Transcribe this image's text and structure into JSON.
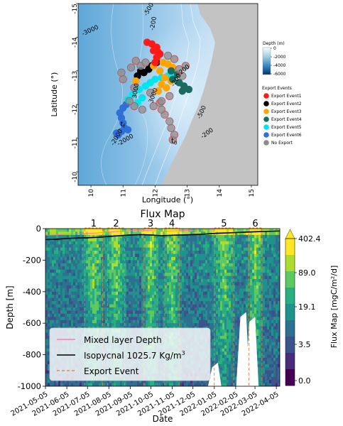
{
  "chart_data": [
    {
      "type": "scatter",
      "xlabel": "Longitude (°)",
      "ylabel": "Latitude (°)",
      "xlim": [
        9.6,
        15.2
      ],
      "ylim": [
        -15,
        -9.6
      ],
      "xticks": [
        "10",
        "11",
        "12",
        "13",
        "14",
        "15"
      ],
      "yticks": [
        "-10",
        "-11",
        "-12",
        "-13",
        "-14",
        "-15"
      ],
      "annotations": [
        "t0",
        "tf"
      ],
      "contour_labels": [
        "-2000",
        "-2000",
        "-200",
        "-500",
        "3000",
        "-3000",
        "3000",
        "-200",
        "200",
        "-200",
        "-500"
      ],
      "colorbar": {
        "title": "Depth (m)",
        "ticks": [
          "0",
          "-2000",
          "-4000",
          "-6000"
        ]
      },
      "legend": {
        "title": "Export Events",
        "position": "right",
        "entries": [
          {
            "name": "Export Event1",
            "color": "#ff1a1a"
          },
          {
            "name": "Export Event2",
            "color": "#000000"
          },
          {
            "name": "Export Event3",
            "color": "#ffa500"
          },
          {
            "name": "Export Event4",
            "color": "#1b6b63"
          },
          {
            "name": "Export Event5",
            "color": "#00e5ee"
          },
          {
            "name": "Export Event6",
            "color": "#2e6fd8"
          },
          {
            "name": "No Export",
            "color": "#8c8c8c"
          }
        ]
      },
      "series": [
        {
          "name": "Export Event6",
          "color": "#2e6fd8",
          "points": [
            [
              10.8,
              -11.15
            ],
            [
              10.95,
              -11.2
            ],
            [
              11.05,
              -11.3
            ],
            [
              11.0,
              -11.45
            ],
            [
              10.95,
              -11.6
            ],
            [
              10.9,
              -11.75
            ],
            [
              11.0,
              -11.9
            ],
            [
              11.1,
              -12.0
            ],
            [
              10.85,
              -11.1
            ],
            [
              11.15,
              -11.25
            ]
          ]
        },
        {
          "name": "Export Event5",
          "color": "#00e5ee",
          "points": [
            [
              11.15,
              -12.15
            ],
            [
              11.3,
              -12.3
            ],
            [
              11.5,
              -12.45
            ],
            [
              11.7,
              -12.55
            ],
            [
              11.85,
              -12.65
            ],
            [
              12.0,
              -12.75
            ],
            [
              12.2,
              -12.8
            ],
            [
              12.4,
              -12.85
            ],
            [
              12.6,
              -12.9
            ],
            [
              11.6,
              -12.2
            ],
            [
              11.45,
              -12.05
            ]
          ]
        },
        {
          "name": "Export Event2",
          "color": "#000000",
          "points": [
            [
              11.45,
              -12.85
            ],
            [
              11.65,
              -12.95
            ],
            [
              11.8,
              -13.05
            ],
            [
              11.9,
              -13.15
            ],
            [
              12.05,
              -13.25
            ],
            [
              11.55,
              -13.0
            ]
          ]
        },
        {
          "name": "Export Event3",
          "color": "#ffa500",
          "points": [
            [
              12.1,
              -12.4
            ],
            [
              12.2,
              -12.6
            ],
            [
              12.3,
              -12.8
            ],
            [
              12.15,
              -13.0
            ],
            [
              11.95,
              -13.15
            ],
            [
              12.25,
              -13.25
            ],
            [
              12.4,
              -13.2
            ],
            [
              12.55,
              -13.1
            ],
            [
              12.35,
              -12.5
            ],
            [
              12.5,
              -12.7
            ],
            [
              11.4,
              -12.7
            ]
          ]
        },
        {
          "name": "Export Event4",
          "color": "#1b6b63",
          "points": [
            [
              12.55,
              -12.75
            ],
            [
              12.75,
              -12.65
            ],
            [
              12.9,
              -12.55
            ],
            [
              13.05,
              -12.45
            ],
            [
              12.7,
              -12.9
            ],
            [
              12.5,
              -13.0
            ],
            [
              12.85,
              -12.4
            ]
          ]
        },
        {
          "name": "Export Event1",
          "color": "#ff1a1a",
          "points": [
            [
              12.0,
              -13.25
            ],
            [
              12.05,
              -13.4
            ],
            [
              12.1,
              -13.55
            ],
            [
              12.05,
              -13.7
            ],
            [
              11.9,
              -13.8
            ],
            [
              11.75,
              -13.85
            ],
            [
              11.95,
              -13.6
            ],
            [
              12.15,
              -13.5
            ]
          ]
        },
        {
          "name": "No Export",
          "color": "#8c8c8c",
          "points": [
            [
              12.55,
              -10.95
            ],
            [
              12.6,
              -11.1
            ],
            [
              12.5,
              -11.3
            ],
            [
              12.45,
              -11.5
            ],
            [
              12.3,
              -11.7
            ],
            [
              12.2,
              -11.85
            ],
            [
              12.15,
              -12.05
            ],
            [
              11.95,
              -11.95
            ],
            [
              11.6,
              -11.85
            ],
            [
              11.35,
              -11.95
            ],
            [
              11.2,
              -12.1
            ],
            [
              11.35,
              -12.5
            ],
            [
              11.0,
              -12.75
            ],
            [
              10.95,
              -12.95
            ],
            [
              11.25,
              -13.1
            ],
            [
              11.55,
              -13.15
            ],
            [
              11.7,
              -13.25
            ],
            [
              11.4,
              -13.3
            ],
            [
              12.2,
              -12.1
            ],
            [
              12.45,
              -12.25
            ],
            [
              12.85,
              -12.85
            ],
            [
              12.75,
              -13.05
            ],
            [
              12.95,
              -13.15
            ],
            [
              12.6,
              -13.35
            ],
            [
              12.4,
              -13.45
            ],
            [
              11.85,
              -12.35
            ]
          ]
        }
      ]
    },
    {
      "type": "heatmap",
      "title": "Flux Map",
      "xlabel": "Date",
      "ylabel": "Depth [m]",
      "x_start": "2021-05-05",
      "x_end": "2022-04-10",
      "xticks": [
        "2021-05-05",
        "2021-06-05",
        "2021-07-05",
        "2021-08-05",
        "2021-09-05",
        "2021-10-05",
        "2021-11-05",
        "2021-12-05",
        "2022-01-05",
        "2022-02-05",
        "2022-03-05",
        "2022-04-05"
      ],
      "ylim": [
        0,
        -1000
      ],
      "yticks": [
        "0",
        "-200",
        "-400",
        "-600",
        "-800",
        "-1000"
      ],
      "colorbar": {
        "label": "Flux Map [mgC/m²/d]",
        "ticks": [
          "402.4",
          "89.0",
          "19.1",
          "3.5",
          "0.0"
        ]
      },
      "export_events": [
        {
          "label": "1",
          "start": "2021-07-01",
          "end": "2021-07-27"
        },
        {
          "label": "2",
          "start": "2021-08-03",
          "end": "2021-08-28"
        },
        {
          "label": "3",
          "start": "2021-09-25",
          "end": "2021-10-14"
        },
        {
          "label": "4",
          "start": "2021-10-25",
          "end": "2021-11-15"
        },
        {
          "label": "5",
          "start": "2022-01-05",
          "end": "2022-02-02"
        },
        {
          "label": "6",
          "start": "2022-02-24",
          "end": "2022-03-15"
        }
      ],
      "legend": {
        "position": "lower-left",
        "entries": [
          {
            "name": "Mixed layer Depth",
            "color": "#ff69b4",
            "style": "solid"
          },
          {
            "name": "Isopycnal 1025.7 Kg/m",
            "name_sup": "3",
            "color": "#000000",
            "style": "solid"
          },
          {
            "name": "Export Event",
            "color": "#e07b39",
            "style": "dashed"
          }
        ]
      },
      "isopycnal_depth": [
        [
          "2021-05-05",
          -70
        ],
        [
          "2021-05-20",
          -68
        ],
        [
          "2021-06-05",
          -62
        ],
        [
          "2021-06-20",
          -60
        ],
        [
          "2021-07-05",
          -58
        ],
        [
          "2021-07-20",
          -55
        ],
        [
          "2021-08-05",
          -50
        ],
        [
          "2021-08-20",
          -45
        ],
        [
          "2021-09-05",
          -40
        ],
        [
          "2021-09-20",
          -38
        ],
        [
          "2021-10-05",
          -40
        ],
        [
          "2021-10-20",
          -45
        ],
        [
          "2021-11-05",
          -42
        ],
        [
          "2021-11-20",
          -40
        ],
        [
          "2021-12-05",
          -38
        ],
        [
          "2021-12-20",
          -35
        ],
        [
          "2022-01-05",
          -30
        ],
        [
          "2022-01-20",
          -28
        ],
        [
          "2022-02-05",
          -25
        ],
        [
          "2022-02-20",
          -22
        ],
        [
          "2022-03-05",
          -20
        ],
        [
          "2022-03-20",
          -18
        ],
        [
          "2022-04-10",
          -15
        ]
      ]
    }
  ]
}
